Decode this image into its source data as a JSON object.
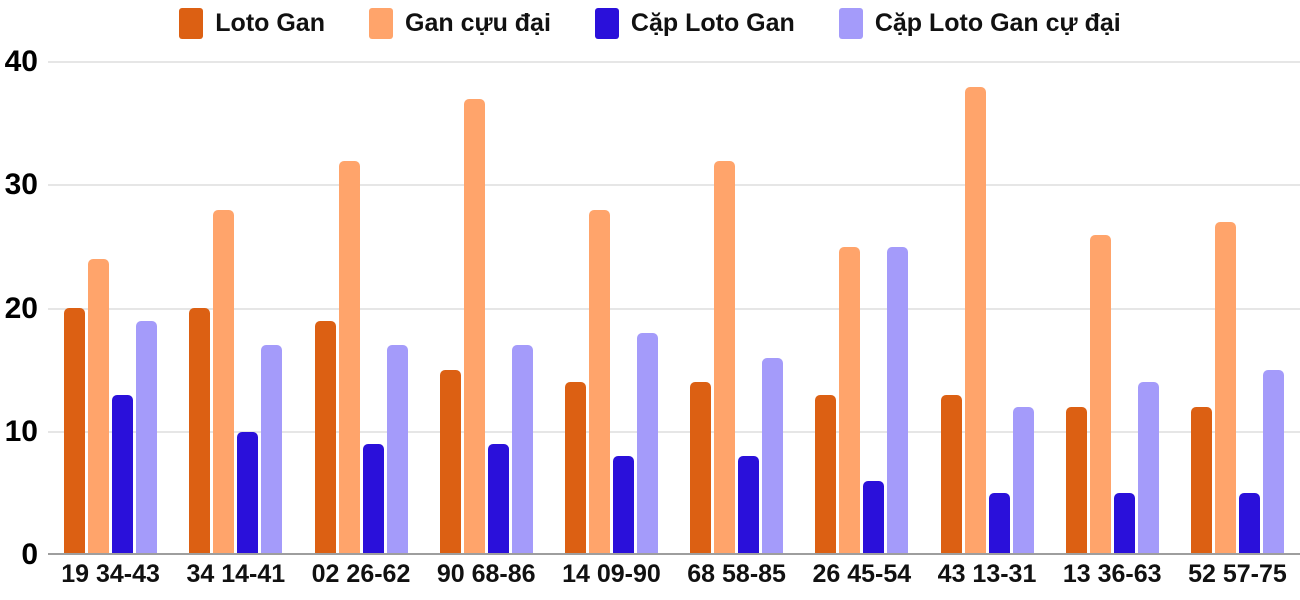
{
  "chart_data": {
    "type": "bar",
    "categories": [
      "19 34-43",
      "34 14-41",
      "02 26-62",
      "90 68-86",
      "14 09-90",
      "68 58-85",
      "26 45-54",
      "43 13-31",
      "13 36-63",
      "52 57-75"
    ],
    "series": [
      {
        "name": "Loto Gan",
        "color": "#dc6013",
        "values": [
          20,
          20,
          19,
          15,
          14,
          14,
          13,
          13,
          12,
          12
        ]
      },
      {
        "name": "Gan cựu đại",
        "color": "#ffa46b",
        "values": [
          24,
          28,
          32,
          37,
          28,
          32,
          25,
          38,
          26,
          27
        ]
      },
      {
        "name": "Cặp Loto Gan",
        "color": "#2a10da",
        "values": [
          13,
          10,
          9,
          9,
          8,
          8,
          6,
          5,
          5,
          5
        ]
      },
      {
        "name": "Cặp Loto Gan cự đại",
        "color": "#a49bfa",
        "values": [
          19,
          17,
          17,
          17,
          18,
          16,
          25,
          12,
          14,
          15
        ]
      }
    ],
    "title": "",
    "xlabel": "",
    "ylabel": "",
    "ylim": [
      0,
      40
    ],
    "yticks": [
      0,
      10,
      20,
      30,
      40
    ],
    "grid": true,
    "legend_position": "top"
  },
  "style": {
    "grid_color": "#e6e6e6",
    "baseline_color": "#9e9e9e",
    "text_color": "#111111",
    "background": "#ffffff"
  }
}
